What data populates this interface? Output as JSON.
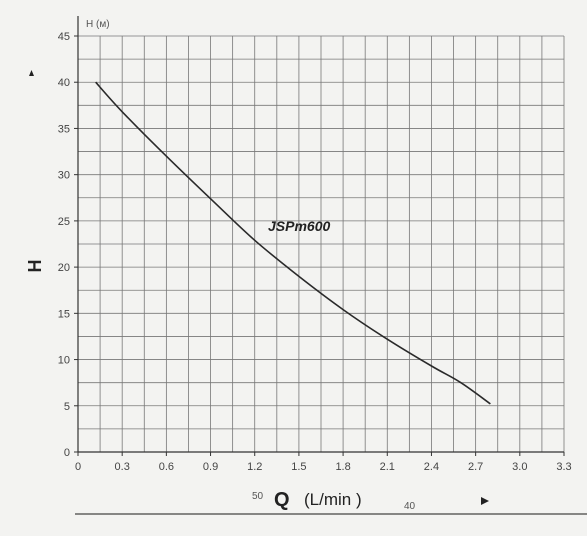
{
  "chart_data": {
    "type": "line",
    "series_label": "JSPm600",
    "y_unit_label": "H (м)",
    "y_axis_letter": "H",
    "x_axis_prefix": "50",
    "x_axis_symbol": "Q",
    "x_axis_unit": "(L/min )",
    "x_axis_suffix": "40",
    "xlim": [
      0,
      3.3
    ],
    "ylim": [
      0,
      45
    ],
    "x_ticks": [
      "0",
      "0.3",
      "0.6",
      "0.9",
      "1.2",
      "1.5",
      "1.8",
      "2.1",
      "2.4",
      "2.7",
      "3.0",
      "3.3"
    ],
    "y_ticks": [
      "0",
      "5",
      "10",
      "15",
      "20",
      "25",
      "30",
      "35",
      "40",
      "45"
    ],
    "grid": true,
    "x": [
      0.12,
      0.3,
      0.6,
      0.9,
      1.2,
      1.5,
      1.8,
      2.1,
      2.4,
      2.6,
      2.8
    ],
    "y": [
      40,
      36.8,
      32.0,
      27.4,
      22.9,
      19.0,
      15.4,
      12.2,
      9.3,
      7.5,
      5.2
    ]
  }
}
